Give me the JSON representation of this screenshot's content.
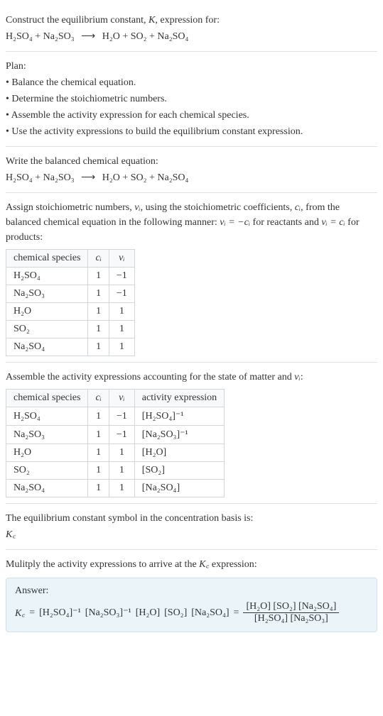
{
  "intro": {
    "line1_prefix": "Construct the equilibrium constant, ",
    "K": "K",
    "line1_suffix": ", expression for:",
    "reaction_left": "H₂SO₄ + Na₂SO₃",
    "arrow": "⟶",
    "reaction_right": "H₂O + SO₂ + Na₂SO₄"
  },
  "plan": {
    "heading": "Plan:",
    "items": [
      "• Balance the chemical equation.",
      "• Determine the stoichiometric numbers.",
      "• Assemble the activity expression for each chemical species.",
      "• Use the activity expressions to build the equilibrium constant expression."
    ]
  },
  "balanced": {
    "heading": "Write the balanced chemical equation:",
    "left": "H₂SO₄ + Na₂SO₃",
    "arrow": "⟶",
    "right": "H₂O + SO₂ + Na₂SO₄"
  },
  "assign": {
    "text_a": "Assign stoichiometric numbers, ",
    "nu": "νᵢ",
    "text_b": ", using the stoichiometric coefficients, ",
    "ci": "cᵢ",
    "text_c": ", from the balanced chemical equation in the following manner: ",
    "eq1": "νᵢ = −cᵢ",
    "text_d": " for reactants and ",
    "eq2": "νᵢ = cᵢ",
    "text_e": " for products:"
  },
  "table1": {
    "headers": {
      "sp": "chemical species",
      "ci": "cᵢ",
      "nu": "νᵢ"
    },
    "rows": [
      {
        "sp": "H₂SO₄",
        "ci": "1",
        "nu": "−1"
      },
      {
        "sp": "Na₂SO₃",
        "ci": "1",
        "nu": "−1"
      },
      {
        "sp": "H₂O",
        "ci": "1",
        "nu": "1"
      },
      {
        "sp": "SO₂",
        "ci": "1",
        "nu": "1"
      },
      {
        "sp": "Na₂SO₄",
        "ci": "1",
        "nu": "1"
      }
    ]
  },
  "assemble": {
    "text_a": "Assemble the activity expressions accounting for the state of matter and ",
    "nu": "νᵢ",
    "text_b": ":"
  },
  "table2": {
    "headers": {
      "sp": "chemical species",
      "ci": "cᵢ",
      "nu": "νᵢ",
      "act": "activity expression"
    },
    "rows": [
      {
        "sp": "H₂SO₄",
        "ci": "1",
        "nu": "−1",
        "act": "[H₂SO₄]⁻¹"
      },
      {
        "sp": "Na₂SO₃",
        "ci": "1",
        "nu": "−1",
        "act": "[Na₂SO₃]⁻¹"
      },
      {
        "sp": "H₂O",
        "ci": "1",
        "nu": "1",
        "act": "[H₂O]"
      },
      {
        "sp": "SO₂",
        "ci": "1",
        "nu": "1",
        "act": "[SO₂]"
      },
      {
        "sp": "Na₂SO₄",
        "ci": "1",
        "nu": "1",
        "act": "[Na₂SO₄]"
      }
    ]
  },
  "kc_symbol": {
    "line1": "The equilibrium constant symbol in the concentration basis is:",
    "symbol": "K꜀"
  },
  "multiply": {
    "text_a": "Mulitply the activity expressions to arrive at the ",
    "kc": "K꜀",
    "text_b": " expression:"
  },
  "answer": {
    "label": "Answer:",
    "kc": "K꜀",
    "eq": "=",
    "p1": "[H₂SO₄]⁻¹",
    "p2": "[Na₂SO₃]⁻¹",
    "p3": "[H₂O]",
    "p4": "[SO₂]",
    "p5": "[Na₂SO₄]",
    "frac_num": "[H₂O] [SO₂] [Na₂SO₄]",
    "frac_den": "[H₂SO₄] [Na₂SO₃]"
  }
}
